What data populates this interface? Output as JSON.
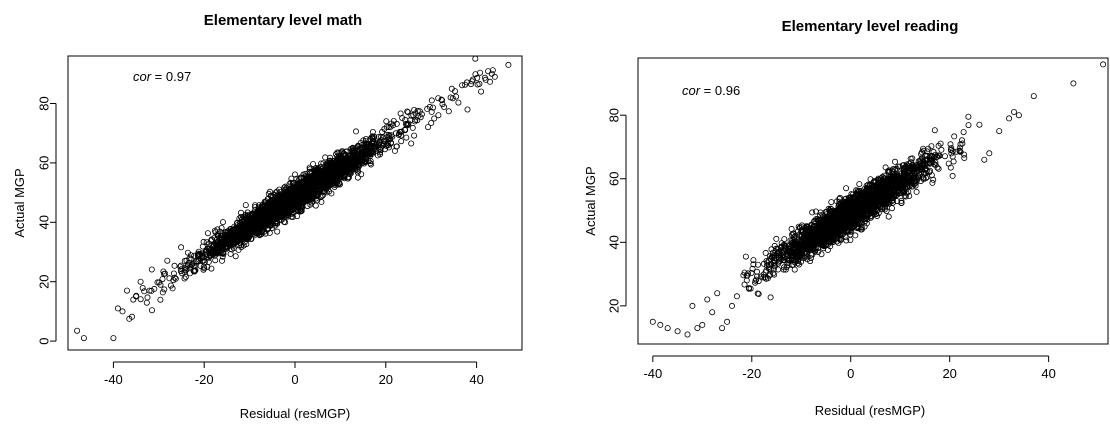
{
  "chart_data": [
    {
      "type": "scatter",
      "title": "Elementary level math",
      "xlabel": "Residual (resMGP)",
      "ylabel": "Actual MGP",
      "xlim": [
        -50,
        50
      ],
      "ylim": [
        -3,
        96
      ],
      "xticks": [
        -40,
        -20,
        0,
        20,
        40
      ],
      "yticks": [
        0,
        20,
        40,
        60,
        80
      ],
      "annotation": {
        "label": "cor",
        "value": " = 0.97"
      },
      "cor": 0.97,
      "trend": {
        "slope": 0.975,
        "intercept": 48.5,
        "x_range": [
          -36,
          44
        ],
        "x_sd": 10,
        "spread": 2.4
      },
      "outliers": [
        {
          "x": -48,
          "y": 3.5
        },
        {
          "x": -46.5,
          "y": 1
        },
        {
          "x": -40,
          "y": 1
        },
        {
          "x": -39,
          "y": 11
        },
        {
          "x": -38,
          "y": 10
        },
        {
          "x": -36.5,
          "y": 7.5
        },
        {
          "x": -37,
          "y": 17
        },
        {
          "x": -35,
          "y": 15
        },
        {
          "x": -34,
          "y": 20
        },
        {
          "x": 42,
          "y": 88
        },
        {
          "x": 44,
          "y": 89
        },
        {
          "x": 47,
          "y": 93
        },
        {
          "x": 38,
          "y": 78
        },
        {
          "x": 41,
          "y": 84
        }
      ],
      "grid": false
    },
    {
      "type": "scatter",
      "title": "Elementary level reading",
      "xlabel": "Residual (resMGP)",
      "ylabel": "Actual MGP",
      "xlim": [
        -43,
        52
      ],
      "ylim": [
        8,
        98
      ],
      "xticks": [
        -40,
        -20,
        0,
        20,
        40
      ],
      "yticks": [
        20,
        40,
        60,
        80
      ],
      "annotation": {
        "label": "cor",
        "value": " = 0.96"
      },
      "cor": 0.96,
      "trend": {
        "slope": 0.985,
        "intercept": 49,
        "x_range": [
          -22,
          24
        ],
        "x_sd": 7,
        "spread": 2.6
      },
      "outliers": [
        {
          "x": -40,
          "y": 15
        },
        {
          "x": -38.5,
          "y": 14
        },
        {
          "x": -37,
          "y": 13
        },
        {
          "x": -35,
          "y": 12
        },
        {
          "x": -33,
          "y": 11
        },
        {
          "x": -31,
          "y": 13
        },
        {
          "x": -30,
          "y": 14
        },
        {
          "x": -29,
          "y": 22
        },
        {
          "x": -28,
          "y": 18
        },
        {
          "x": -26,
          "y": 13
        },
        {
          "x": -25,
          "y": 15
        },
        {
          "x": -27,
          "y": 24
        },
        {
          "x": -24,
          "y": 20
        },
        {
          "x": -23,
          "y": 23
        },
        {
          "x": -32,
          "y": 20
        },
        {
          "x": 28,
          "y": 68
        },
        {
          "x": 30,
          "y": 75
        },
        {
          "x": 32,
          "y": 79
        },
        {
          "x": 33,
          "y": 81
        },
        {
          "x": 34,
          "y": 80
        },
        {
          "x": 37,
          "y": 86
        },
        {
          "x": 45,
          "y": 90
        },
        {
          "x": 51,
          "y": 96
        },
        {
          "x": 26,
          "y": 77
        },
        {
          "x": 27,
          "y": 66
        }
      ],
      "grid": false
    }
  ]
}
